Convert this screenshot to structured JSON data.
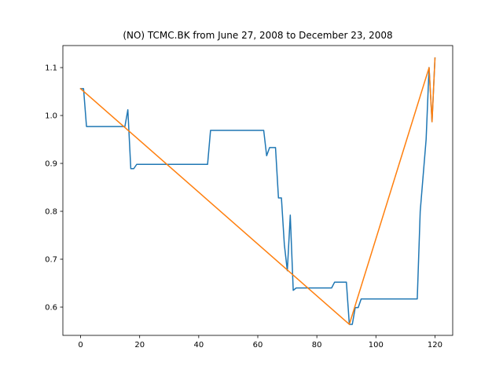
{
  "chart_data": {
    "type": "line",
    "title": "(NO) TCMC.BK from June 27, 2008 to December 23, 2008",
    "xlabel": "",
    "ylabel": "",
    "xlim": [
      -6,
      126
    ],
    "ylim": [
      0.541,
      1.146
    ],
    "x_ticks": [
      0,
      20,
      40,
      60,
      80,
      100,
      120
    ],
    "y_ticks": [
      0.6,
      0.7,
      0.8,
      0.9,
      1.0,
      1.1
    ],
    "y_tick_labels": [
      "0.6",
      "0.7",
      "0.8",
      "0.9",
      "1.0",
      "1.1"
    ],
    "grid": false,
    "legend": "none",
    "series": [
      {
        "color": "#1f77b4",
        "points": [
          [
            0,
            1.056
          ],
          [
            1,
            1.056
          ],
          [
            2,
            0.977
          ],
          [
            15,
            0.977
          ],
          [
            16,
            1.012
          ],
          [
            17,
            0.889
          ],
          [
            18,
            0.889
          ],
          [
            19,
            0.898
          ],
          [
            43,
            0.898
          ],
          [
            44,
            0.969
          ],
          [
            62,
            0.969
          ],
          [
            63,
            0.916
          ],
          [
            64,
            0.933
          ],
          [
            66,
            0.933
          ],
          [
            67,
            0.828
          ],
          [
            68,
            0.828
          ],
          [
            69,
            0.73
          ],
          [
            70,
            0.676
          ],
          [
            71,
            0.792
          ],
          [
            72,
            0.635
          ],
          [
            73,
            0.64
          ],
          [
            85,
            0.64
          ],
          [
            86,
            0.652
          ],
          [
            90,
            0.652
          ],
          [
            91,
            0.564
          ],
          [
            92,
            0.564
          ],
          [
            93,
            0.599
          ],
          [
            94,
            0.599
          ],
          [
            95,
            0.617
          ],
          [
            114,
            0.617
          ],
          [
            115,
            0.8
          ],
          [
            117,
            0.95
          ],
          [
            118,
            1.1
          ],
          [
            119,
            0.987
          ],
          [
            120,
            1.12
          ]
        ]
      },
      {
        "color": "#ff7f0e",
        "points": [
          [
            0,
            1.056
          ],
          [
            91,
            0.564
          ],
          [
            118,
            1.1
          ],
          [
            119,
            0.987
          ],
          [
            120,
            1.12
          ]
        ]
      }
    ]
  }
}
